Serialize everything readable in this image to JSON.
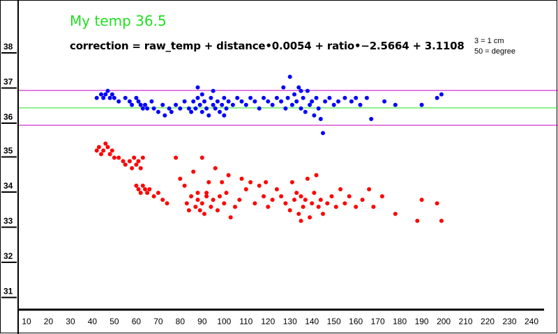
{
  "title": "My temp 36.5",
  "formula": "correction = raw_temp + distance•0.0054 + ratio•−2.5664 + 3.1108",
  "notes": [
    "3 = 1 cm",
    "50 = degree"
  ],
  "chart_data": {
    "type": "scatter",
    "xlim": [
      5,
      245
    ],
    "ylim": [
      30.5,
      39.2
    ],
    "x_ticks": [
      10,
      20,
      30,
      40,
      50,
      60,
      70,
      80,
      90,
      100,
      110,
      120,
      130,
      140,
      150,
      160,
      170,
      180,
      190,
      200,
      210,
      220,
      230,
      240
    ],
    "y_ticks": [
      31,
      32,
      33,
      34,
      35,
      36,
      37,
      38
    ],
    "reference_lines": [
      {
        "y": 37.0,
        "color": "#c000c0"
      },
      {
        "y": 36.5,
        "color": "#21e021"
      },
      {
        "y": 36.0,
        "color": "#c000c0"
      }
    ],
    "series": [
      {
        "color": "#0000ff",
        "points": [
          [
            42,
            36.6
          ],
          [
            44,
            36.7
          ],
          [
            45,
            36.6
          ],
          [
            46,
            36.7
          ],
          [
            47,
            36.8
          ],
          [
            48,
            36.6
          ],
          [
            49,
            36.7
          ],
          [
            50,
            36.6
          ],
          [
            52,
            36.5
          ],
          [
            55,
            36.6
          ],
          [
            57,
            36.5
          ],
          [
            58,
            36.4
          ],
          [
            60,
            36.6
          ],
          [
            61,
            36.5
          ],
          [
            62,
            36.4
          ],
          [
            63,
            36.3
          ],
          [
            64,
            36.4
          ],
          [
            65,
            36.3
          ],
          [
            67,
            36.5
          ],
          [
            68,
            36.3
          ],
          [
            70,
            36.2
          ],
          [
            72,
            36.4
          ],
          [
            73,
            36.1
          ],
          [
            75,
            36.3
          ],
          [
            76,
            36.2
          ],
          [
            78,
            36.4
          ],
          [
            80,
            36.3
          ],
          [
            82,
            36.5
          ],
          [
            84,
            36.3
          ],
          [
            85,
            36.2
          ],
          [
            86,
            36.5
          ],
          [
            87,
            36.3
          ],
          [
            88,
            36.6
          ],
          [
            89,
            36.4
          ],
          [
            90,
            36.2
          ],
          [
            90,
            36.7
          ],
          [
            91,
            36.5
          ],
          [
            92,
            36.3
          ],
          [
            93,
            36.1
          ],
          [
            94,
            36.6
          ],
          [
            95,
            36.4
          ],
          [
            96,
            36.3
          ],
          [
            97,
            36.5
          ],
          [
            98,
            36.2
          ],
          [
            99,
            36.4
          ],
          [
            100,
            36.6
          ],
          [
            101,
            36.3
          ],
          [
            102,
            36.5
          ],
          [
            104,
            36.4
          ],
          [
            106,
            36.6
          ],
          [
            108,
            36.5
          ],
          [
            110,
            36.4
          ],
          [
            112,
            36.6
          ],
          [
            114,
            36.5
          ],
          [
            116,
            36.3
          ],
          [
            118,
            36.6
          ],
          [
            120,
            36.5
          ],
          [
            122,
            36.4
          ],
          [
            124,
            36.6
          ],
          [
            126,
            36.5
          ],
          [
            127,
            36.9
          ],
          [
            128,
            36.3
          ],
          [
            129,
            36.6
          ],
          [
            130,
            37.2
          ],
          [
            131,
            36.4
          ],
          [
            132,
            36.7
          ],
          [
            133,
            36.5
          ],
          [
            134,
            36.9
          ],
          [
            135,
            36.3
          ],
          [
            136,
            36.6
          ],
          [
            137,
            36.2
          ],
          [
            138,
            36.8
          ],
          [
            139,
            36.4
          ],
          [
            140,
            36.5
          ],
          [
            141,
            36.1
          ],
          [
            142,
            36.6
          ],
          [
            143,
            36.3
          ],
          [
            144,
            36.0
          ],
          [
            145,
            35.6
          ],
          [
            146,
            36.5
          ],
          [
            148,
            36.6
          ],
          [
            150,
            36.4
          ],
          [
            152,
            36.5
          ],
          [
            155,
            36.6
          ],
          [
            158,
            36.5
          ],
          [
            160,
            36.6
          ],
          [
            162,
            36.4
          ],
          [
            165,
            36.6
          ],
          [
            167,
            36.0
          ],
          [
            173,
            36.5
          ],
          [
            178,
            36.4
          ],
          [
            190,
            36.4
          ],
          [
            197,
            36.6
          ],
          [
            199,
            36.7
          ],
          [
            88,
            36.9
          ],
          [
            95,
            36.8
          ],
          [
            100,
            36.1
          ],
          [
            135,
            36.8
          ]
        ]
      },
      {
        "color": "#ff0000",
        "points": [
          [
            42,
            35.1
          ],
          [
            43,
            35.2
          ],
          [
            44,
            35.0
          ],
          [
            45,
            35.1
          ],
          [
            46,
            35.3
          ],
          [
            47,
            35.2
          ],
          [
            48,
            35.0
          ],
          [
            49,
            35.1
          ],
          [
            50,
            34.9
          ],
          [
            52,
            34.9
          ],
          [
            54,
            34.8
          ],
          [
            55,
            34.7
          ],
          [
            57,
            34.8
          ],
          [
            58,
            34.6
          ],
          [
            59,
            34.9
          ],
          [
            60,
            34.7
          ],
          [
            61,
            34.8
          ],
          [
            62,
            34.6
          ],
          [
            63,
            34.9
          ],
          [
            60,
            34.1
          ],
          [
            61,
            34.0
          ],
          [
            62,
            33.9
          ],
          [
            63,
            34.1
          ],
          [
            64,
            34.0
          ],
          [
            65,
            33.9
          ],
          [
            66,
            34.0
          ],
          [
            68,
            33.8
          ],
          [
            70,
            33.9
          ],
          [
            72,
            33.7
          ],
          [
            74,
            33.6
          ],
          [
            78,
            34.9
          ],
          [
            80,
            34.3
          ],
          [
            82,
            34.1
          ],
          [
            83,
            33.6
          ],
          [
            84,
            33.4
          ],
          [
            85,
            33.8
          ],
          [
            86,
            34.5
          ],
          [
            87,
            33.5
          ],
          [
            88,
            33.7
          ],
          [
            89,
            33.4
          ],
          [
            90,
            33.6
          ],
          [
            90,
            34.9
          ],
          [
            91,
            33.3
          ],
          [
            92,
            33.8
          ],
          [
            93,
            34.2
          ],
          [
            94,
            33.5
          ],
          [
            95,
            33.7
          ],
          [
            96,
            34.6
          ],
          [
            97,
            33.4
          ],
          [
            98,
            33.8
          ],
          [
            99,
            34.2
          ],
          [
            100,
            33.6
          ],
          [
            101,
            33.9
          ],
          [
            102,
            34.4
          ],
          [
            103,
            33.2
          ],
          [
            105,
            33.5
          ],
          [
            107,
            33.7
          ],
          [
            108,
            34.3
          ],
          [
            110,
            34.0
          ],
          [
            112,
            34.2
          ],
          [
            114,
            33.6
          ],
          [
            116,
            34.1
          ],
          [
            118,
            33.8
          ],
          [
            119,
            34.2
          ],
          [
            120,
            33.5
          ],
          [
            122,
            33.7
          ],
          [
            124,
            34.0
          ],
          [
            126,
            33.8
          ],
          [
            128,
            33.6
          ],
          [
            130,
            33.4
          ],
          [
            131,
            34.2
          ],
          [
            132,
            33.7
          ],
          [
            133,
            33.9
          ],
          [
            134,
            33.3
          ],
          [
            135,
            33.8
          ],
          [
            136,
            33.5
          ],
          [
            137,
            33.7
          ],
          [
            138,
            34.3
          ],
          [
            139,
            33.2
          ],
          [
            140,
            33.6
          ],
          [
            141,
            33.9
          ],
          [
            142,
            34.4
          ],
          [
            143,
            33.5
          ],
          [
            144,
            33.7
          ],
          [
            145,
            33.3
          ],
          [
            147,
            33.6
          ],
          [
            149,
            33.8
          ],
          [
            151,
            33.5
          ],
          [
            153,
            34.0
          ],
          [
            155,
            33.6
          ],
          [
            157,
            33.8
          ],
          [
            160,
            33.5
          ],
          [
            163,
            33.7
          ],
          [
            166,
            34.0
          ],
          [
            168,
            33.5
          ],
          [
            172,
            33.8
          ],
          [
            178,
            33.3
          ],
          [
            188,
            33.1
          ],
          [
            190,
            33.7
          ],
          [
            197,
            33.6
          ],
          [
            199,
            33.1
          ],
          [
            88,
            33.9
          ],
          [
            92,
            33.9
          ],
          [
            135,
            33.1
          ]
        ]
      }
    ]
  }
}
